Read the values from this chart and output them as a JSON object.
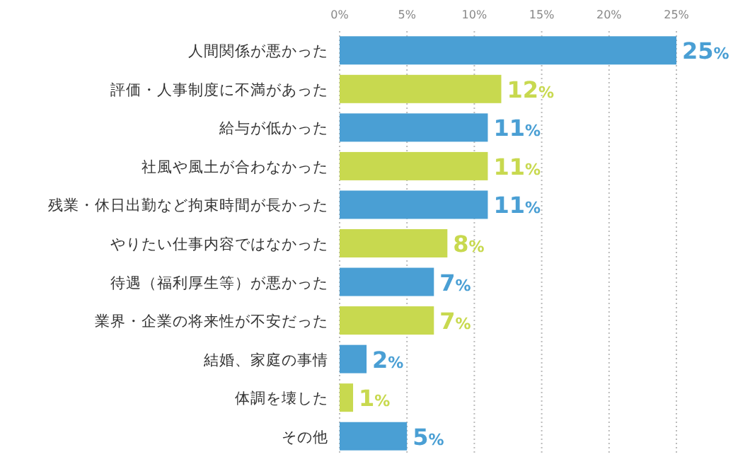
{
  "chart_data": {
    "type": "bar",
    "orientation": "horizontal",
    "categories": [
      "人間関係が悪かった",
      "評価・人事制度に不満があった",
      "給与が低かった",
      "社風や風土が合わなかった",
      "残業・休日出勤など拘束時間が長かった",
      "やりたい仕事内容ではなかった",
      "待遇（福利厚生等）が悪かった",
      "業界・企業の将来性が不安だった",
      "結婚、家庭の事情",
      "体調を壊した",
      "その他"
    ],
    "values": [
      25,
      12,
      11,
      11,
      11,
      8,
      7,
      7,
      2,
      1,
      5
    ],
    "colors": [
      "#4a9fd4",
      "#c8d94f",
      "#4a9fd4",
      "#c8d94f",
      "#4a9fd4",
      "#c8d94f",
      "#4a9fd4",
      "#c8d94f",
      "#4a9fd4",
      "#c8d94f",
      "#4a9fd4"
    ],
    "value_labels": [
      "25%",
      "12%",
      "11%",
      "11%",
      "11%",
      "8%",
      "7%",
      "7%",
      "2%",
      "1%",
      "5%"
    ],
    "xlim": [
      0,
      25
    ],
    "xticks": [
      {
        "value": 0,
        "label": "0%"
      },
      {
        "value": 5,
        "label": "5%"
      },
      {
        "value": 10,
        "label": "10%"
      },
      {
        "value": 15,
        "label": "15%"
      },
      {
        "value": 20,
        "label": "20%"
      },
      {
        "value": 25,
        "label": "25%"
      }
    ],
    "grid": "x"
  }
}
